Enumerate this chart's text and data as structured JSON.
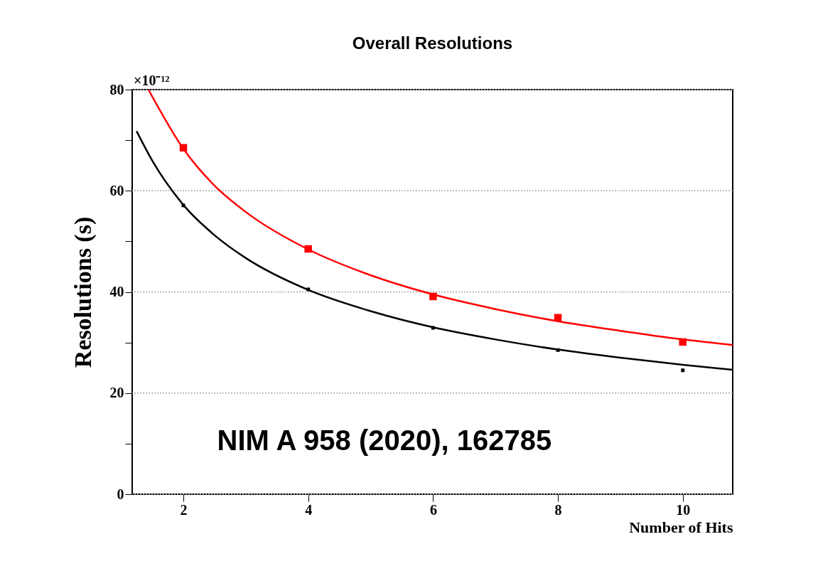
{
  "chart_data": {
    "type": "scatter",
    "title": "Overall Resolutions",
    "xlabel": "Number of Hits",
    "ylabel": "Resolutions (s)",
    "annotations": [
      "×10⁻¹²",
      "NIM A 958 (2020), 162785"
    ],
    "xlim": [
      1.18,
      10.8
    ],
    "xticks": [
      2,
      4,
      6,
      8,
      10
    ],
    "ylim": [
      0,
      80
    ],
    "yticks": [
      0,
      {
        "value": 10,
        "label": null
      },
      20,
      {
        "value": 30,
        "label": null
      },
      40,
      {
        "value": 50,
        "label": null
      },
      60,
      {
        "value": 70,
        "label": null
      },
      80
    ],
    "grid": "y",
    "marker": "square",
    "series": [
      {
        "type": "line",
        "marker": "none",
        "color": "#ff0000",
        "x": [
          1.44,
          2,
          2.5,
          3,
          4,
          5,
          6,
          7,
          8,
          9,
          10,
          10.8
        ],
        "values": [
          80,
          68.3,
          61,
          55.8,
          48.4,
          43.3,
          39.5,
          36.6,
          34.2,
          32.3,
          30.6,
          29.5
        ]
      },
      {
        "type": "line",
        "marker": "none",
        "color": "#000000",
        "x": [
          1.25,
          1.5,
          2,
          2.5,
          3,
          4,
          5,
          6,
          7,
          8,
          9,
          10,
          10.8
        ],
        "values": [
          71.8,
          66,
          57.2,
          51.2,
          46.7,
          40.4,
          36.2,
          33,
          30.6,
          28.6,
          27,
          25.6,
          24.6
        ]
      },
      {
        "color": "#ff0000",
        "x": [
          2,
          4,
          6,
          8,
          10
        ],
        "values": [
          68.5,
          48.5,
          39.1,
          34.9,
          30.1
        ]
      },
      {
        "color": "#000000",
        "x": [
          2,
          4,
          6,
          8,
          10
        ],
        "values": [
          57.1,
          40.5,
          32.9,
          28.5,
          24.5
        ]
      }
    ]
  }
}
